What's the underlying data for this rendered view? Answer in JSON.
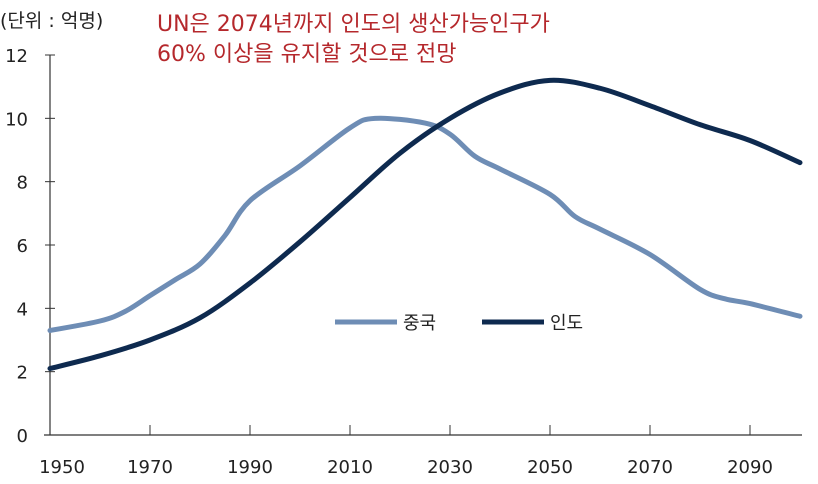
{
  "chart_data": {
    "type": "line",
    "unit_label": "(단위 : 억명)",
    "annotation": [
      "UN은 2074년까지 인도의 생산가능인구가",
      "60% 이상을 유지할 것으로 전망"
    ],
    "xlim": [
      1950,
      2100
    ],
    "ylim": [
      0,
      12
    ],
    "x_ticks": [
      1950,
      1970,
      1990,
      2010,
      2030,
      2050,
      2070,
      2090
    ],
    "y_ticks": [
      0,
      2,
      4,
      6,
      8,
      10,
      12
    ],
    "grid": false,
    "legend_position": "center-right",
    "series": [
      {
        "name": "중국",
        "color": "#6e8db5",
        "x": [
          1950,
          1960,
          1965,
          1970,
          1975,
          1980,
          1985,
          1990,
          2000,
          2010,
          2015,
          2025,
          2030,
          2035,
          2040,
          2050,
          2055,
          2060,
          2070,
          2080,
          2085,
          2090,
          2100
        ],
        "y": [
          3.3,
          3.6,
          3.9,
          4.4,
          4.9,
          5.4,
          6.3,
          7.4,
          8.5,
          9.7,
          10.0,
          9.85,
          9.5,
          8.8,
          8.4,
          7.6,
          6.9,
          6.5,
          5.7,
          4.6,
          4.3,
          4.15,
          3.75
        ]
      },
      {
        "name": "인도",
        "color": "#0e2a4f",
        "x": [
          1950,
          1960,
          1970,
          1980,
          1990,
          2000,
          2010,
          2020,
          2030,
          2040,
          2050,
          2060,
          2070,
          2080,
          2090,
          2100
        ],
        "y": [
          2.1,
          2.5,
          3.0,
          3.7,
          4.8,
          6.1,
          7.5,
          8.9,
          10.0,
          10.8,
          11.2,
          10.95,
          10.4,
          9.8,
          9.3,
          8.6
        ]
      }
    ]
  }
}
